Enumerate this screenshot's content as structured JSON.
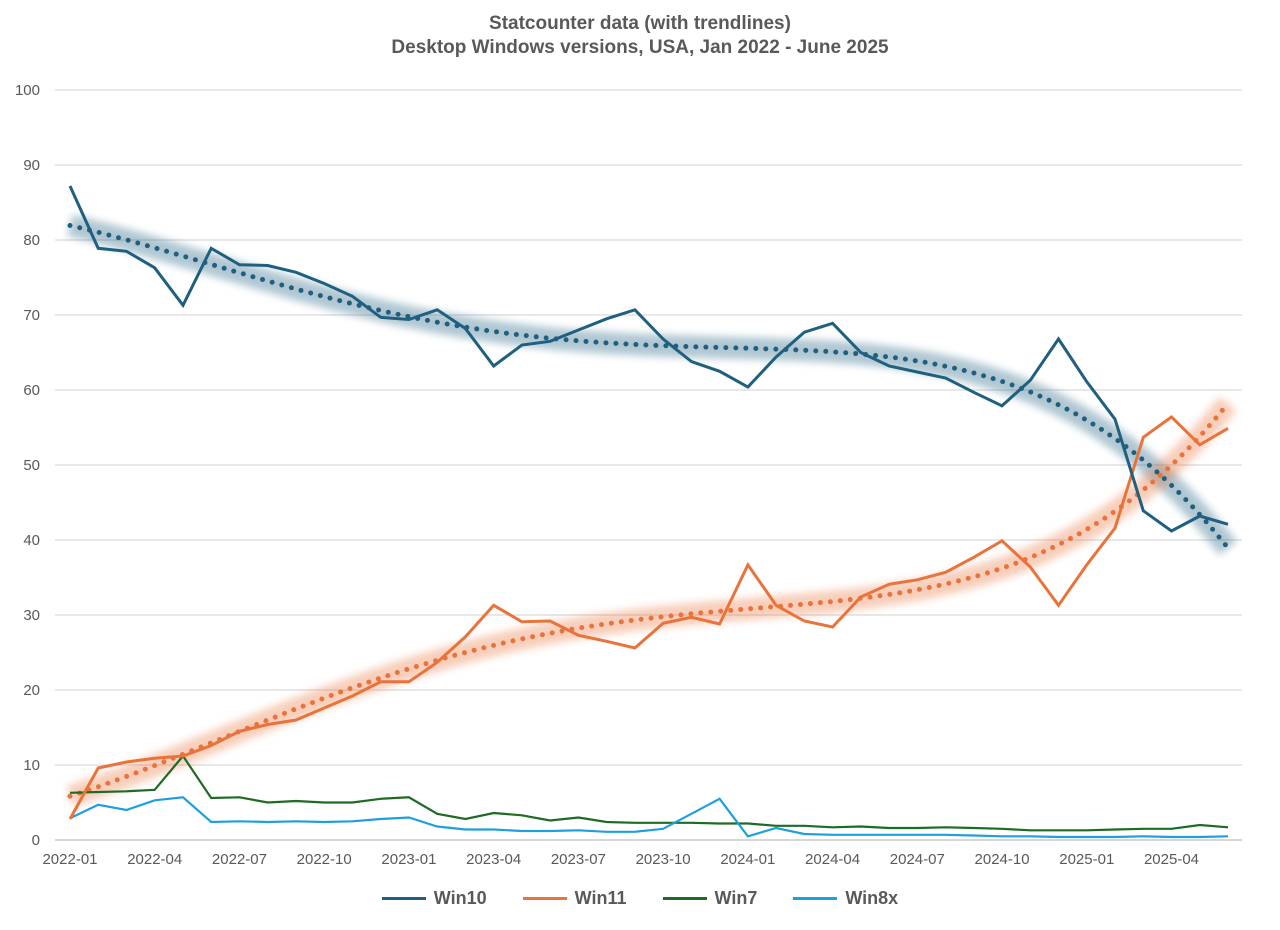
{
  "chart_data": {
    "type": "line",
    "title": "Statcounter data (with trendlines)",
    "subtitle": "Desktop Windows versions, USA, Jan 2022 - June 2025",
    "xlabel": "",
    "ylabel": "",
    "ylim": [
      0,
      100
    ],
    "yticks": [
      0,
      10,
      20,
      30,
      40,
      50,
      60,
      70,
      80,
      90,
      100
    ],
    "grid": true,
    "legend_position": "bottom",
    "x": [
      "2022-01",
      "2022-02",
      "2022-03",
      "2022-04",
      "2022-05",
      "2022-06",
      "2022-07",
      "2022-08",
      "2022-09",
      "2022-10",
      "2022-11",
      "2022-12",
      "2023-01",
      "2023-02",
      "2023-03",
      "2023-04",
      "2023-05",
      "2023-06",
      "2023-07",
      "2023-08",
      "2023-09",
      "2023-10",
      "2023-11",
      "2023-12",
      "2024-01",
      "2024-02",
      "2024-03",
      "2024-04",
      "2024-05",
      "2024-06",
      "2024-07",
      "2024-08",
      "2024-09",
      "2024-10",
      "2024-11",
      "2024-12",
      "2025-01",
      "2025-02",
      "2025-03",
      "2025-04",
      "2025-05",
      "2025-06"
    ],
    "xtick_labels": [
      "2022-01",
      "2022-04",
      "2022-07",
      "2022-10",
      "2023-01",
      "2023-04",
      "2023-07",
      "2023-10",
      "2024-01",
      "2024-04",
      "2024-07",
      "2024-10",
      "2025-01",
      "2025-04"
    ],
    "series": [
      {
        "name": "Win10",
        "color": "#1f5f7f",
        "trendline": "polynomial",
        "values": [
          87.2,
          78.9,
          78.5,
          76.3,
          71.3,
          78.9,
          76.7,
          76.6,
          75.7,
          74.2,
          72.5,
          69.7,
          69.4,
          70.7,
          68.2,
          63.2,
          66.0,
          66.5,
          68.0,
          69.5,
          70.7,
          66.8,
          63.8,
          62.5,
          60.4,
          64.4,
          67.7,
          68.9,
          65.0,
          63.2,
          62.4,
          61.6,
          59.7,
          57.9,
          61.3,
          66.8,
          61.1,
          56.1,
          43.9,
          41.2,
          43.2,
          42.1
        ]
      },
      {
        "name": "Win11",
        "color": "#e9733a",
        "trendline": "polynomial",
        "values": [
          2.8,
          9.6,
          10.4,
          10.9,
          11.2,
          12.6,
          14.5,
          15.4,
          16.0,
          17.6,
          19.2,
          21.1,
          21.1,
          23.7,
          27.1,
          31.3,
          29.1,
          29.2,
          27.3,
          26.5,
          25.6,
          28.9,
          29.7,
          28.8,
          36.7,
          31.3,
          29.2,
          28.4,
          32.4,
          34.1,
          34.7,
          35.7,
          37.7,
          39.9,
          36.4,
          31.3,
          36.7,
          41.6,
          53.7,
          56.4,
          52.7,
          54.9
        ]
      },
      {
        "name": "Win7",
        "color": "#1e6b24",
        "values": [
          6.3,
          6.4,
          6.5,
          6.7,
          11.2,
          5.6,
          5.7,
          5.0,
          5.2,
          5.0,
          5.0,
          5.5,
          5.7,
          3.5,
          2.8,
          3.6,
          3.3,
          2.6,
          3.0,
          2.4,
          2.3,
          2.3,
          2.3,
          2.2,
          2.2,
          1.9,
          1.9,
          1.7,
          1.8,
          1.6,
          1.6,
          1.7,
          1.6,
          1.5,
          1.3,
          1.3,
          1.3,
          1.4,
          1.5,
          1.5,
          2.0,
          1.7
        ]
      },
      {
        "name": "Win8x",
        "color": "#1fa0dc",
        "values": [
          2.9,
          4.7,
          4.0,
          5.3,
          5.7,
          2.4,
          2.5,
          2.4,
          2.5,
          2.4,
          2.5,
          2.8,
          3.0,
          1.8,
          1.4,
          1.4,
          1.2,
          1.2,
          1.3,
          1.1,
          1.1,
          1.5,
          3.5,
          5.5,
          0.5,
          1.6,
          0.8,
          0.7,
          0.7,
          0.7,
          0.7,
          0.7,
          0.6,
          0.5,
          0.5,
          0.4,
          0.4,
          0.4,
          0.5,
          0.4,
          0.4,
          0.5
        ]
      }
    ]
  }
}
